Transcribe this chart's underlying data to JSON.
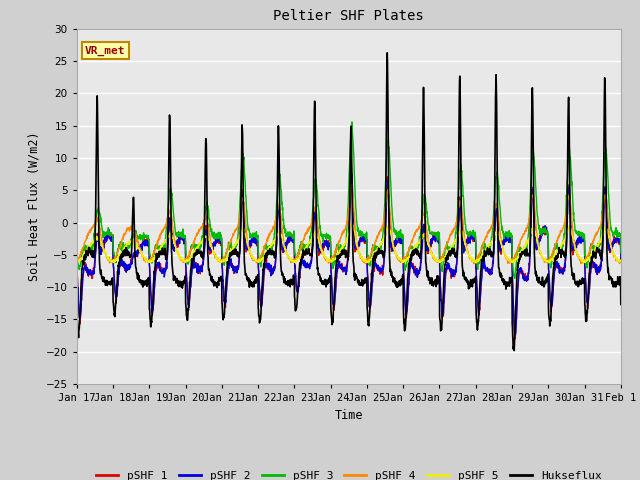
{
  "title": "Peltier SHF Plates",
  "xlabel": "Time",
  "ylabel": "Soil Heat Flux (W/m2)",
  "ylim": [
    -25,
    30
  ],
  "yticks": [
    -25,
    -20,
    -15,
    -10,
    -5,
    0,
    5,
    10,
    15,
    20,
    25,
    30
  ],
  "fig_bg": "#d0d0d0",
  "ax_bg": "#e8e8e8",
  "series_colors": {
    "pSHF 1": "#dd0000",
    "pSHF 2": "#0000dd",
    "pSHF 3": "#00bb00",
    "pSHF 4": "#ff8800",
    "pSHF 5": "#eeee00",
    "Hukseflux": "#000000"
  },
  "annotation_text": "VR_met",
  "annotation_color": "#990000",
  "annotation_bg": "#ffffaa",
  "annotation_border": "#bb8800",
  "num_days": 15,
  "x_tick_labels": [
    "Jan 17",
    "Jan 18",
    "Jan 19",
    "Jan 20",
    "Jan 21",
    "Jan 22",
    "Jan 23",
    "Jan 24",
    "Jan 25",
    "Jan 26",
    "Jan 27",
    "Jan 28",
    "Jan 29",
    "Jan 30",
    "Jan 31",
    "Feb 1"
  ],
  "day_huk_peaks": [
    19.5,
    4,
    17.0,
    13.5,
    15.0,
    15.0,
    18.5,
    15.0,
    26.0,
    21.0,
    23.0,
    23.0,
    21.0,
    19.5,
    22.5
  ],
  "day_shf_peaks": [
    4.5,
    1,
    7.0,
    5.0,
    11.0,
    9.0,
    8.0,
    15.0,
    13.0,
    6.0,
    10.0,
    9.0,
    12.0,
    12.0,
    12.0
  ],
  "day_neg_red": [
    -19.0,
    -12.5,
    -16.5,
    -14.5,
    -14.5,
    -15.0,
    -11.0,
    -15.5,
    -15.5,
    -17.5,
    -18.0,
    -17.0,
    -23.5,
    -15.5,
    -14.5
  ],
  "day_neg_grn": [
    -9.5,
    -6.0,
    -7.0,
    -7.0,
    -7.0,
    -8.0,
    -6.0,
    -8.0,
    -8.0,
    -9.0,
    -9.0,
    -8.0,
    -12.0,
    -8.5,
    -8.0
  ]
}
